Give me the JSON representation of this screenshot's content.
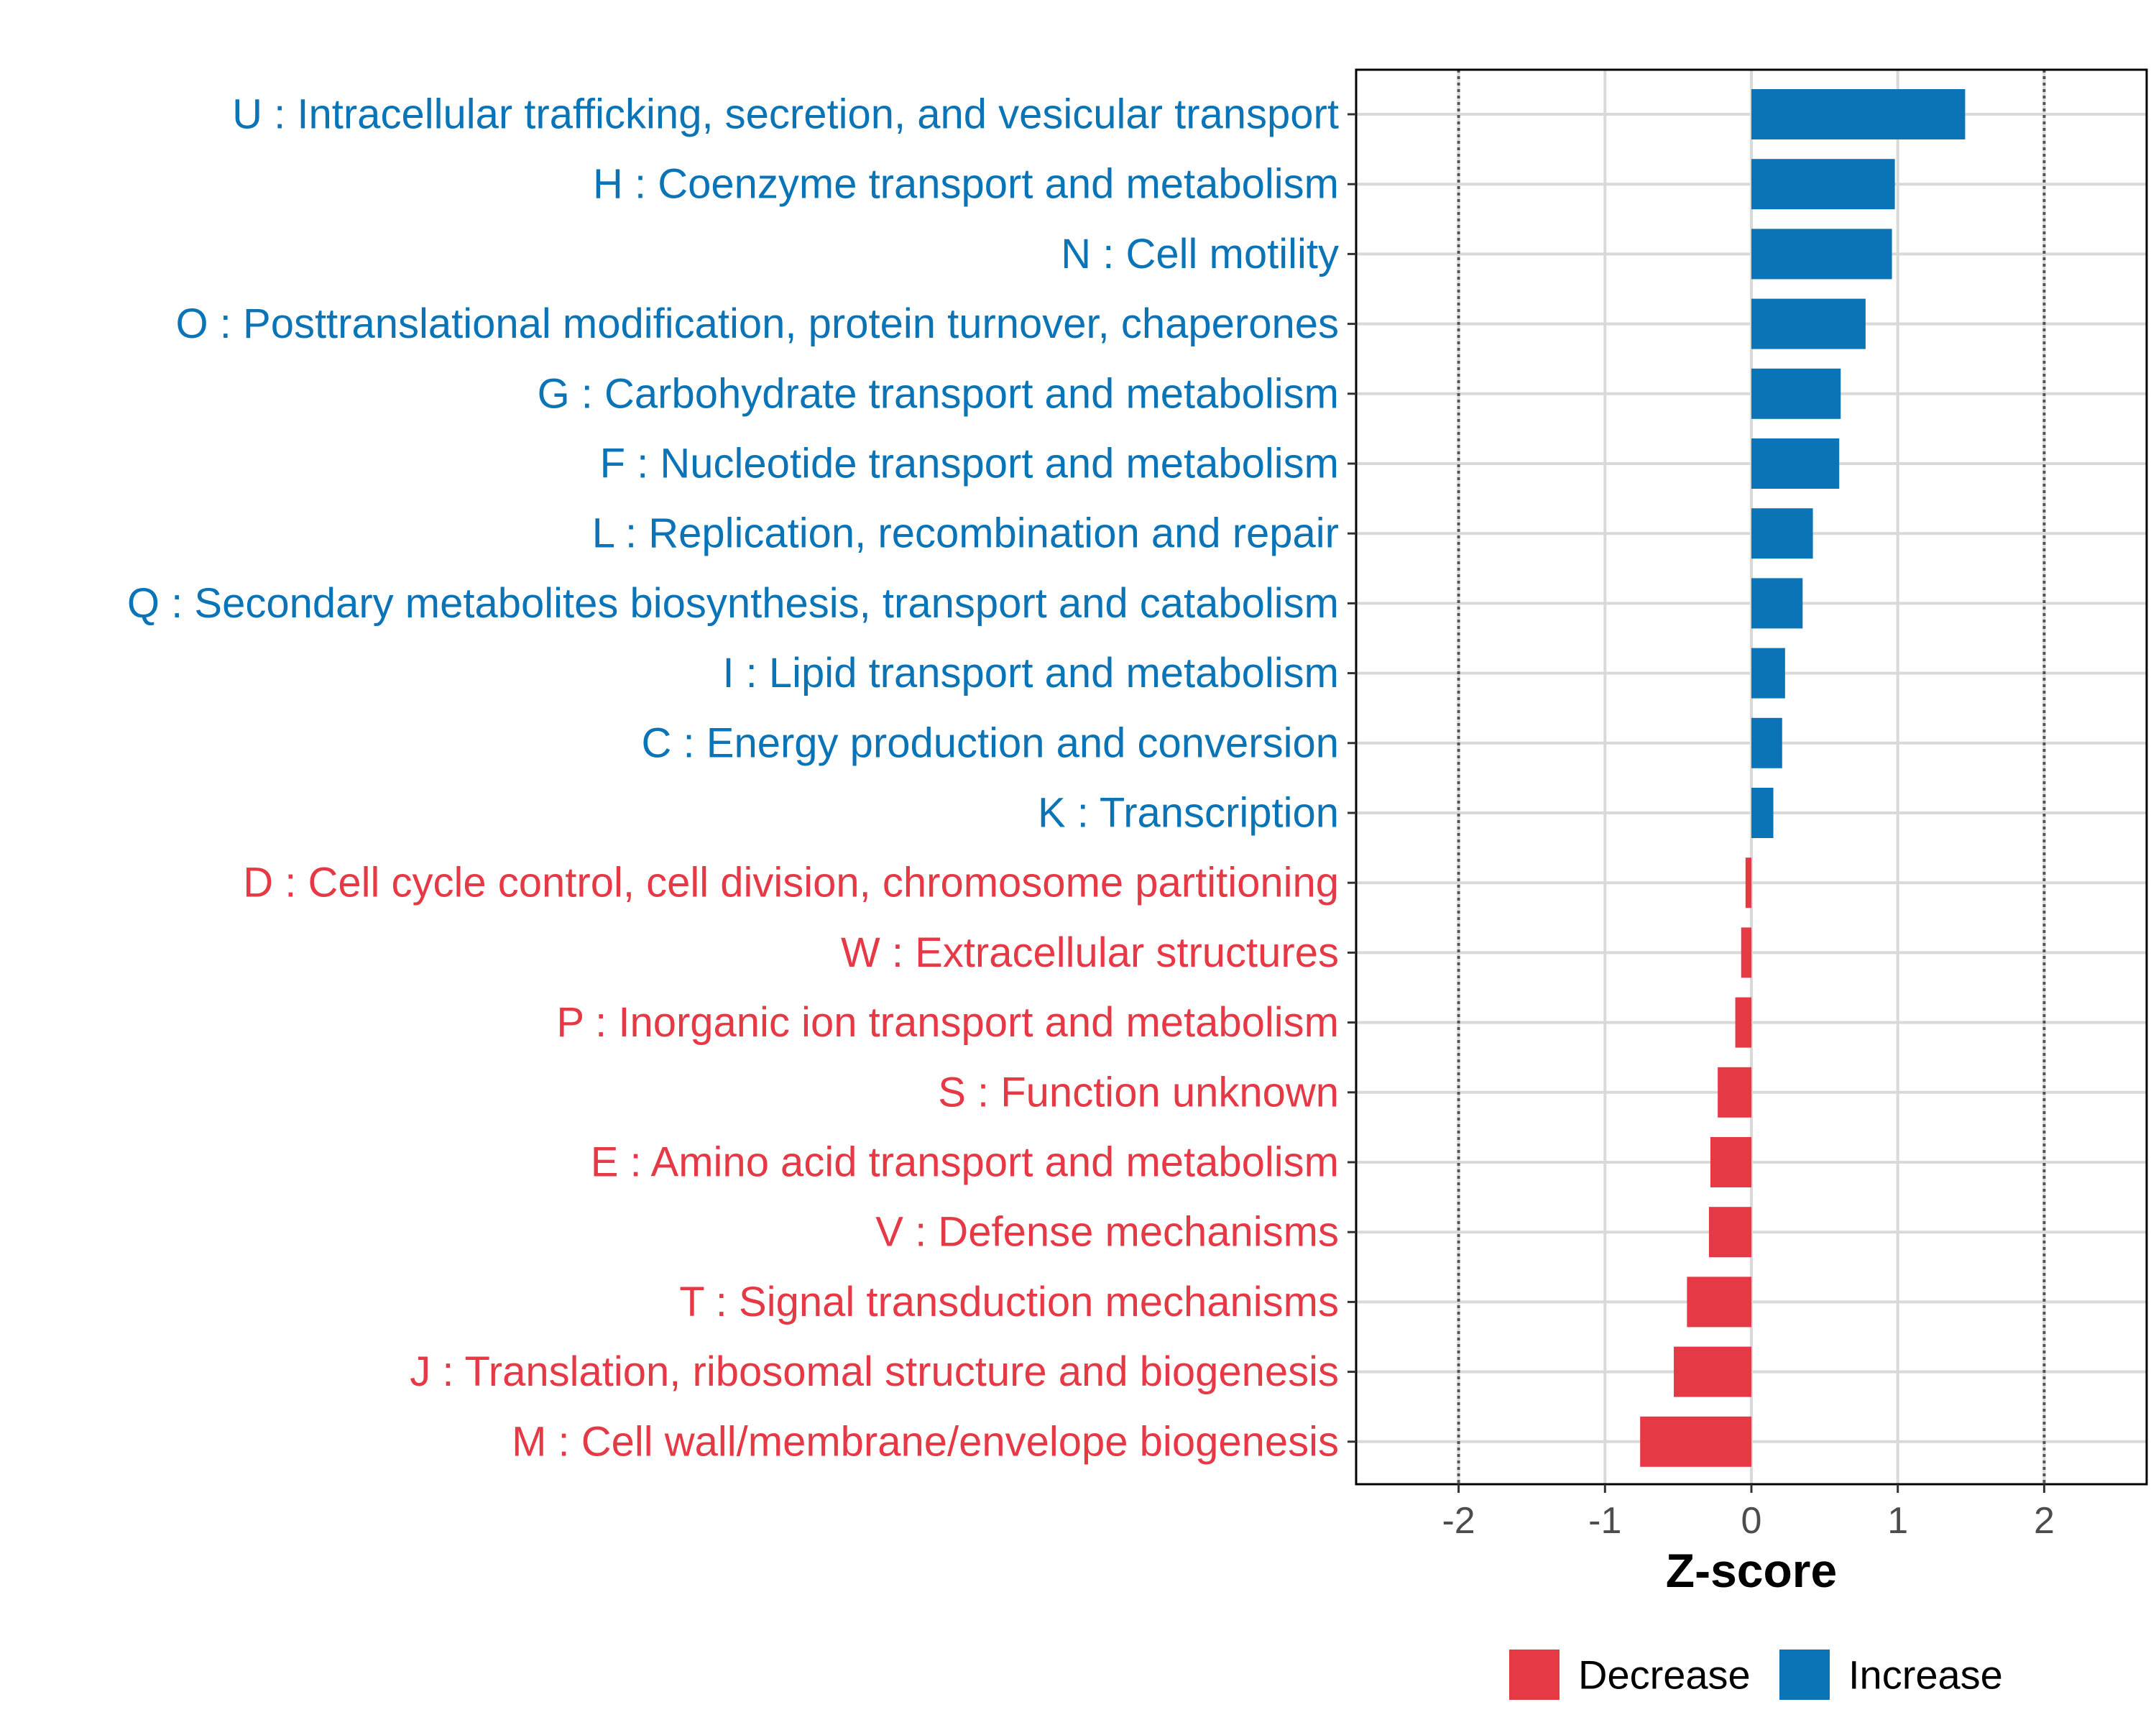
{
  "chart_data": {
    "type": "bar",
    "orientation": "horizontal",
    "xlabel": "Z-score",
    "xlim": [
      -2.7,
      2.7
    ],
    "xticks": [
      -2,
      -1,
      0,
      1,
      2
    ],
    "xtick_labels": [
      "-2",
      "-1",
      "0",
      "1",
      "2"
    ],
    "reference_lines": [
      -2,
      2
    ],
    "categories": [
      "U : Intracellular trafficking, secretion, and vesicular transport",
      "H : Coenzyme transport and metabolism",
      "N : Cell motility",
      "O : Posttranslational modification, protein turnover, chaperones",
      "G : Carbohydrate transport and metabolism",
      "F : Nucleotide transport and metabolism",
      "L : Replication, recombination and repair",
      "Q : Secondary metabolites biosynthesis, transport and catabolism",
      "I : Lipid transport and metabolism",
      "C : Energy production and conversion",
      "K : Transcription",
      "D : Cell cycle control, cell division, chromosome partitioning",
      "W : Extracellular structures",
      "P : Inorganic ion transport and metabolism",
      "S : Function unknown",
      "E : Amino acid transport and metabolism",
      "V : Defense mechanisms",
      "T : Signal transduction mechanisms",
      "J : Translation, ribosomal structure and biogenesis",
      "M : Cell wall/membrane/envelope biogenesis"
    ],
    "values": [
      1.46,
      0.98,
      0.96,
      0.78,
      0.61,
      0.6,
      0.42,
      0.35,
      0.23,
      0.21,
      0.15,
      -0.04,
      -0.07,
      -0.11,
      -0.23,
      -0.28,
      -0.29,
      -0.44,
      -0.53,
      -0.76
    ],
    "groups": [
      "Increase",
      "Increase",
      "Increase",
      "Increase",
      "Increase",
      "Increase",
      "Increase",
      "Increase",
      "Increase",
      "Increase",
      "Increase",
      "Decrease",
      "Decrease",
      "Decrease",
      "Decrease",
      "Decrease",
      "Decrease",
      "Decrease",
      "Decrease",
      "Decrease"
    ],
    "legend": [
      {
        "name": "Decrease",
        "color": "#e63946"
      },
      {
        "name": "Increase",
        "color": "#0a74b6"
      }
    ],
    "legend_position": "bottom",
    "colors": {
      "Increase": "#0a74b6",
      "Decrease": "#e63946",
      "grid": "#d9d9d9",
      "panel_border": "#000000",
      "reference_line": "#555555"
    }
  }
}
